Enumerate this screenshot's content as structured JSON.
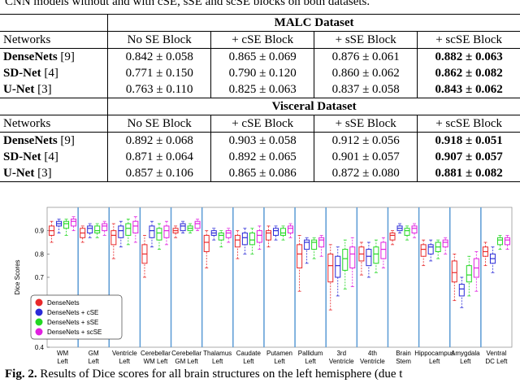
{
  "caption_top": "CNN models without and with cSE, sSE and scSE blocks on both datasets.",
  "table": {
    "sections": [
      {
        "title": "MALC Dataset",
        "header": [
          "Networks",
          "No SE Block",
          "+ cSE Block",
          "+ sSE Block",
          "+ scSE Block"
        ],
        "rows": [
          {
            "network": "DenseNets",
            "ref": "[9]",
            "cells": [
              "0.842 ± 0.058",
              "0.865 ± 0.069",
              "0.876 ± 0.061",
              "0.882 ± 0.063"
            ],
            "best": 3
          },
          {
            "network": "SD-Net",
            "ref": "[4]",
            "cells": [
              "0.771 ± 0.150",
              "0.790 ± 0.120",
              "0.860 ± 0.062",
              "0.862 ± 0.082"
            ],
            "best": 3
          },
          {
            "network": "U-Net",
            "ref": "[3]",
            "cells": [
              "0.763 ± 0.110",
              "0.825 ± 0.063",
              "0.837 ± 0.058",
              "0.843 ± 0.062"
            ],
            "best": 3
          }
        ]
      },
      {
        "title": "Visceral Dataset",
        "header": [
          "Networks",
          "No SE Block",
          "+ cSE Block",
          "+ sSE Block",
          "+ scSE Block"
        ],
        "rows": [
          {
            "network": "DenseNets",
            "ref": "[9]",
            "cells": [
              "0.892 ± 0.068",
              "0.903 ± 0.058",
              "0.912 ± 0.056",
              "0.918 ± 0.051"
            ],
            "best": 3
          },
          {
            "network": "SD-Net",
            "ref": "[4]",
            "cells": [
              "0.871 ± 0.064",
              "0.892 ± 0.065",
              "0.901 ± 0.057",
              "0.907 ± 0.057"
            ],
            "best": 3
          },
          {
            "network": "U-Net",
            "ref": "[3]",
            "cells": [
              "0.857 ± 0.106",
              "0.865 ± 0.086",
              "0.872 ± 0.080",
              "0.881 ± 0.082"
            ],
            "best": 3
          }
        ]
      }
    ]
  },
  "chart_data": {
    "type": "box",
    "ylabel": "Dice Scores",
    "ylim": [
      0.4,
      1.0
    ],
    "yticks": [
      0.4,
      0.5,
      0.6,
      0.7,
      0.8,
      0.9
    ],
    "legend": "lower left",
    "separator_color": "#5b9bd5",
    "categories": [
      [
        "WM",
        "Left"
      ],
      [
        "GM",
        "Left"
      ],
      [
        "Ventricle",
        "Left"
      ],
      [
        "Cerebellar",
        "WM Left"
      ],
      [
        "Cerebellar",
        "GM Left"
      ],
      [
        "Thalamus",
        "Left"
      ],
      [
        "Caudate",
        "Left"
      ],
      [
        "Putamen",
        "Left"
      ],
      [
        "Pallidum",
        "Left"
      ],
      [
        "3rd",
        "Ventricle"
      ],
      [
        "4th",
        "Ventricle"
      ],
      [
        "Brain",
        "Stem"
      ],
      [
        "Hippocampus",
        "Left"
      ],
      [
        "Amygdala",
        "Left"
      ],
      [
        "Ventral",
        "DC Left"
      ]
    ],
    "series": [
      {
        "name": "DenseNets",
        "color": "#e8282a",
        "min": [
          0.85,
          0.85,
          0.78,
          0.7,
          0.87,
          0.74,
          0.78,
          0.83,
          0.64,
          0.56,
          0.71,
          0.84,
          0.75,
          0.6,
          0.75
        ],
        "q1": [
          0.88,
          0.87,
          0.84,
          0.76,
          0.89,
          0.81,
          0.83,
          0.86,
          0.74,
          0.68,
          0.77,
          0.86,
          0.79,
          0.68,
          0.79
        ],
        "median": [
          0.9,
          0.89,
          0.88,
          0.8,
          0.9,
          0.85,
          0.86,
          0.89,
          0.8,
          0.75,
          0.8,
          0.88,
          0.82,
          0.72,
          0.81
        ],
        "q3": [
          0.92,
          0.91,
          0.9,
          0.84,
          0.91,
          0.88,
          0.88,
          0.9,
          0.84,
          0.8,
          0.83,
          0.89,
          0.84,
          0.77,
          0.83
        ],
        "max": [
          0.94,
          0.92,
          0.93,
          0.88,
          0.92,
          0.9,
          0.9,
          0.92,
          0.88,
          0.84,
          0.85,
          0.9,
          0.86,
          0.8,
          0.85
        ]
      },
      {
        "name": "DenseNets + cSE",
        "color": "#2a2ad8",
        "min": [
          0.89,
          0.87,
          0.83,
          0.83,
          0.89,
          0.86,
          0.8,
          0.86,
          0.76,
          0.62,
          0.7,
          0.89,
          0.77,
          0.57,
          0.72
        ],
        "q1": [
          0.92,
          0.89,
          0.87,
          0.87,
          0.9,
          0.88,
          0.84,
          0.88,
          0.82,
          0.7,
          0.75,
          0.9,
          0.8,
          0.62,
          0.76
        ],
        "median": [
          0.93,
          0.91,
          0.9,
          0.9,
          0.92,
          0.89,
          0.87,
          0.9,
          0.85,
          0.75,
          0.79,
          0.91,
          0.83,
          0.65,
          0.78
        ],
        "q3": [
          0.94,
          0.92,
          0.92,
          0.92,
          0.93,
          0.9,
          0.89,
          0.91,
          0.86,
          0.79,
          0.82,
          0.92,
          0.84,
          0.67,
          0.8
        ],
        "max": [
          0.95,
          0.93,
          0.94,
          0.94,
          0.94,
          0.91,
          0.91,
          0.92,
          0.87,
          0.83,
          0.85,
          0.93,
          0.86,
          0.7,
          0.83
        ]
      },
      {
        "name": "DenseNets + sSE",
        "color": "#22d822",
        "min": [
          0.88,
          0.87,
          0.84,
          0.82,
          0.89,
          0.83,
          0.8,
          0.86,
          0.78,
          0.65,
          0.72,
          0.86,
          0.78,
          0.62,
          0.82
        ],
        "q1": [
          0.91,
          0.89,
          0.88,
          0.86,
          0.9,
          0.86,
          0.84,
          0.88,
          0.82,
          0.73,
          0.76,
          0.88,
          0.81,
          0.68,
          0.84
        ],
        "median": [
          0.93,
          0.9,
          0.91,
          0.89,
          0.91,
          0.88,
          0.86,
          0.89,
          0.85,
          0.78,
          0.8,
          0.9,
          0.83,
          0.71,
          0.86
        ],
        "q3": [
          0.94,
          0.92,
          0.93,
          0.91,
          0.92,
          0.89,
          0.89,
          0.91,
          0.86,
          0.82,
          0.83,
          0.91,
          0.85,
          0.75,
          0.87
        ],
        "max": [
          0.95,
          0.93,
          0.95,
          0.93,
          0.93,
          0.9,
          0.91,
          0.92,
          0.87,
          0.86,
          0.86,
          0.92,
          0.86,
          0.79,
          0.88
        ]
      },
      {
        "name": "DenseNets + scSE",
        "color": "#e020e0",
        "min": [
          0.9,
          0.88,
          0.85,
          0.84,
          0.9,
          0.85,
          0.82,
          0.87,
          0.79,
          0.66,
          0.74,
          0.87,
          0.8,
          0.64,
          0.82
        ],
        "q1": [
          0.92,
          0.9,
          0.89,
          0.87,
          0.91,
          0.87,
          0.85,
          0.89,
          0.83,
          0.74,
          0.78,
          0.89,
          0.83,
          0.7,
          0.84
        ],
        "median": [
          0.94,
          0.92,
          0.92,
          0.9,
          0.93,
          0.89,
          0.88,
          0.91,
          0.86,
          0.8,
          0.82,
          0.91,
          0.85,
          0.74,
          0.86
        ],
        "q3": [
          0.95,
          0.93,
          0.94,
          0.92,
          0.94,
          0.9,
          0.9,
          0.92,
          0.87,
          0.83,
          0.85,
          0.92,
          0.86,
          0.78,
          0.87
        ],
        "max": [
          0.96,
          0.94,
          0.96,
          0.94,
          0.95,
          0.91,
          0.92,
          0.93,
          0.88,
          0.87,
          0.87,
          0.93,
          0.87,
          0.81,
          0.88
        ]
      }
    ]
  },
  "caption_bottom": {
    "label": "Fig. 2.",
    "text": "Results of Dice scores for all brain structures on the left hemisphere (due t"
  }
}
